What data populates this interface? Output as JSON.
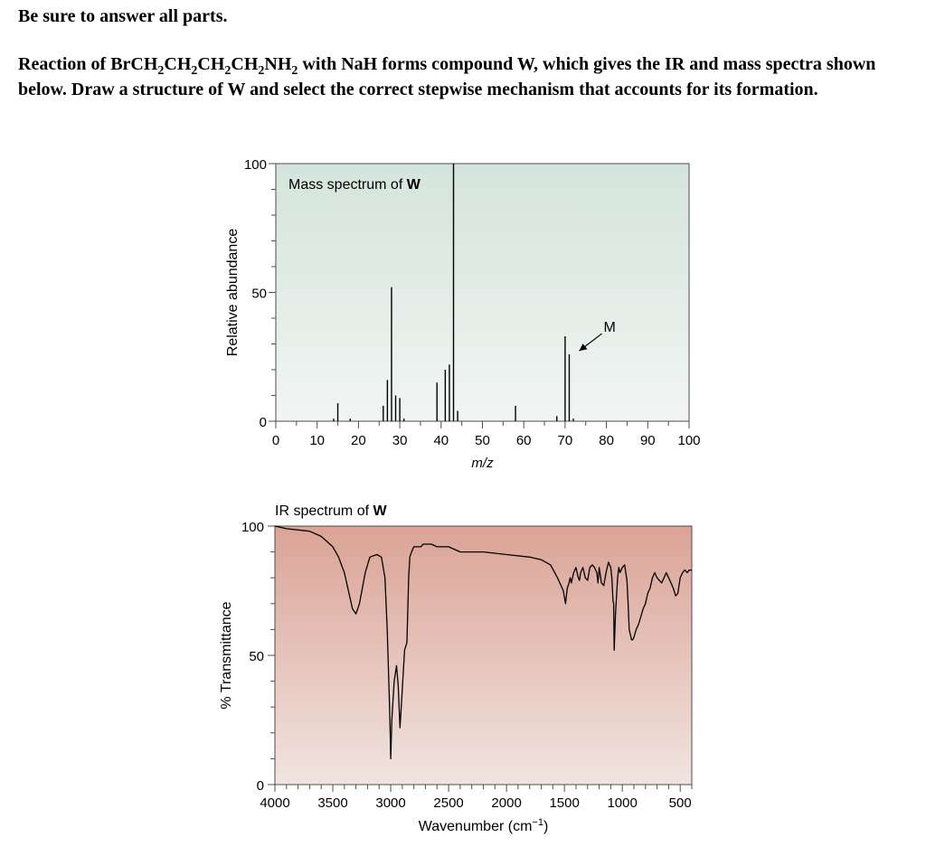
{
  "instruction": "Be sure to answer all parts.",
  "question": {
    "segments": [
      {
        "t": "Reaction of BrCH"
      },
      {
        "t": "2",
        "sub": true
      },
      {
        "t": "CH"
      },
      {
        "t": "2",
        "sub": true
      },
      {
        "t": "CH"
      },
      {
        "t": "2",
        "sub": true
      },
      {
        "t": "CH"
      },
      {
        "t": "2",
        "sub": true
      },
      {
        "t": "NH"
      },
      {
        "t": "2",
        "sub": true
      },
      {
        "t": " with NaH forms compound W, which gives the IR and mass spectra shown below. Draw a structure of W and select the correct stepwise mechanism that accounts for its formation."
      }
    ]
  },
  "chart_data": [
    {
      "type": "bar",
      "title": "Mass spectrum of ",
      "title_bold": "W",
      "xlabel": "m/z",
      "ylabel": "Relative abundance",
      "xlim": [
        0,
        100
      ],
      "ylim": [
        0,
        100
      ],
      "x_ticks": [
        0,
        10,
        20,
        30,
        40,
        50,
        60,
        70,
        80,
        90,
        100
      ],
      "y_ticks": [
        0,
        50,
        100
      ],
      "grid": false,
      "background": [
        "#d4e4dc",
        "#f2f5f3"
      ],
      "annotation": {
        "label": "M",
        "x": 71,
        "y": 28
      },
      "peaks": [
        {
          "x": 14,
          "y": 1
        },
        {
          "x": 15,
          "y": 7
        },
        {
          "x": 18,
          "y": 1
        },
        {
          "x": 26,
          "y": 6
        },
        {
          "x": 27,
          "y": 16
        },
        {
          "x": 28,
          "y": 52
        },
        {
          "x": 29,
          "y": 10
        },
        {
          "x": 30,
          "y": 9
        },
        {
          "x": 31,
          "y": 1
        },
        {
          "x": 39,
          "y": 15
        },
        {
          "x": 41,
          "y": 20
        },
        {
          "x": 42,
          "y": 22
        },
        {
          "x": 43,
          "y": 100
        },
        {
          "x": 44,
          "y": 4
        },
        {
          "x": 58,
          "y": 6
        },
        {
          "x": 68,
          "y": 2
        },
        {
          "x": 70,
          "y": 33
        },
        {
          "x": 71,
          "y": 26
        },
        {
          "x": 72,
          "y": 1
        }
      ]
    },
    {
      "type": "line",
      "title": "IR spectrum of ",
      "title_bold": "W",
      "xlabel": "Wavenumber (cm",
      "xlabel_sup": "−1",
      "xlabel_end": ")",
      "ylabel": "% Transmittance",
      "xlim": [
        4000,
        400
      ],
      "ylim": [
        0,
        100
      ],
      "x_ticks": [
        4000,
        3500,
        3000,
        2500,
        2000,
        1500,
        1000,
        500
      ],
      "y_ticks": [
        0,
        50,
        100
      ],
      "grid": false,
      "background": [
        "#dba396",
        "#f1e4e0"
      ],
      "x": [
        4000,
        3900,
        3700,
        3600,
        3500,
        3450,
        3400,
        3350,
        3330,
        3300,
        3270,
        3220,
        3180,
        3120,
        3080,
        3050,
        3030,
        3010,
        3000,
        2990,
        2970,
        2950,
        2935,
        2920,
        2900,
        2880,
        2860,
        2845,
        2835,
        2820,
        2810,
        2800,
        2780,
        2760,
        2740,
        2720,
        2700,
        2650,
        2600,
        2500,
        2400,
        2200,
        2000,
        1800,
        1700,
        1620,
        1560,
        1510,
        1490,
        1475,
        1460,
        1450,
        1440,
        1420,
        1400,
        1380,
        1370,
        1360,
        1340,
        1320,
        1300,
        1280,
        1260,
        1240,
        1220,
        1210,
        1200,
        1180,
        1160,
        1140,
        1120,
        1110,
        1100,
        1090,
        1080,
        1075,
        1070,
        1060,
        1050,
        1040,
        1030,
        1020,
        1000,
        980,
        960,
        950,
        940,
        930,
        920,
        910,
        900,
        880,
        860,
        840,
        820,
        800,
        780,
        760,
        740,
        720,
        700,
        680,
        660,
        640,
        620,
        600,
        580,
        560,
        540,
        520,
        500,
        480,
        460,
        440,
        420,
        400
      ],
      "y": [
        100,
        99,
        98,
        96,
        92,
        88,
        82,
        72,
        68,
        66,
        70,
        82,
        88,
        89,
        88,
        80,
        60,
        30,
        10,
        25,
        40,
        46,
        38,
        22,
        37,
        52,
        55,
        80,
        88,
        90,
        91,
        92,
        92,
        92,
        92,
        93,
        93,
        93,
        92,
        92,
        90,
        90,
        89,
        88,
        87,
        85,
        80,
        75,
        70,
        76,
        78,
        80,
        78,
        82,
        84,
        80,
        79,
        82,
        84,
        80,
        79,
        84,
        85,
        84,
        82,
        78,
        84,
        78,
        77,
        82,
        86,
        85,
        84,
        80,
        71,
        70,
        52,
        65,
        73,
        80,
        84,
        82,
        84,
        85,
        79,
        70,
        60,
        58,
        56,
        56,
        57,
        60,
        62,
        65,
        68,
        70,
        74,
        76,
        80,
        82,
        80,
        79,
        78,
        80,
        82,
        80,
        78,
        76,
        73,
        74,
        80,
        82,
        83,
        82,
        83,
        83
      ]
    }
  ],
  "colors": {
    "axis": "#4d4d4d",
    "line": "#000000",
    "peak": "#000000"
  }
}
